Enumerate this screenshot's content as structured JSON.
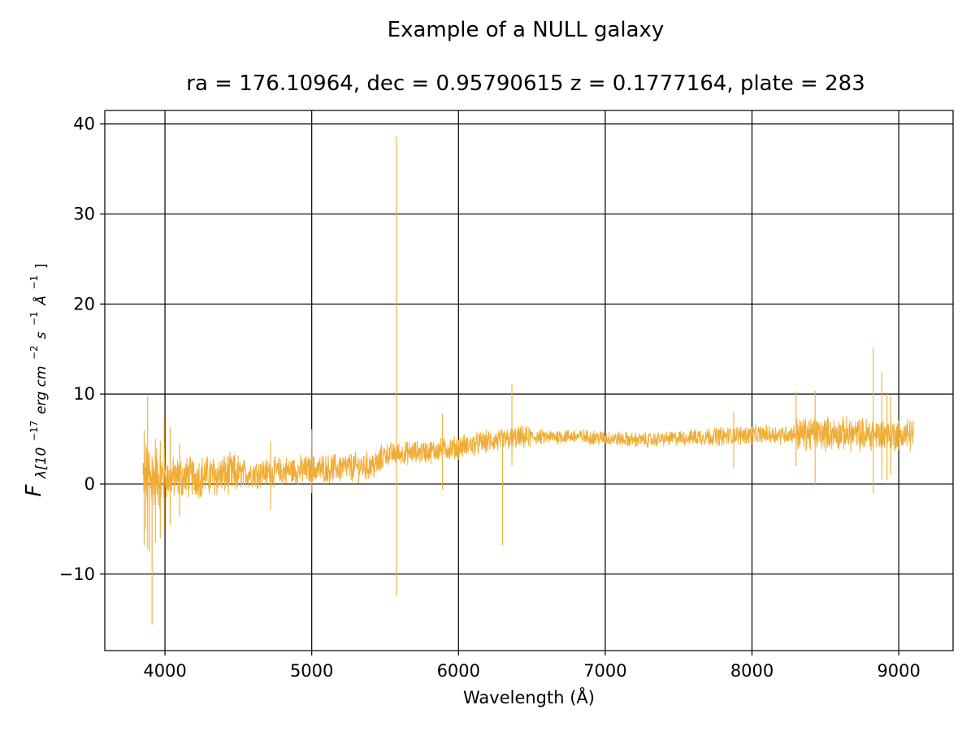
{
  "chart_data": {
    "type": "line",
    "title": "Example of a NULL galaxy",
    "subtitle": "ra = 176.10964, dec = 0.95790615 z = 0.1777164, plate = 283",
    "xlabel": "Wavelength (Å)",
    "ylabel": {
      "main": "F",
      "sub_prefix": "λ[10",
      "sup1": "−17",
      "mid1": "erg cm",
      "sup2": "−2",
      "mid2": "s",
      "sup3": "−1",
      "mid3": "Å",
      "sup4": "−1",
      "suffix": "]"
    },
    "xlim": [
      3590,
      9370
    ],
    "ylim": [
      -18.5,
      41.5
    ],
    "xticks": [
      4000,
      5000,
      6000,
      7000,
      8000,
      9000
    ],
    "xtick_labels": [
      "4000",
      "5000",
      "6000",
      "7000",
      "8000",
      "9000"
    ],
    "yticks": [
      -10,
      0,
      10,
      20,
      30,
      40
    ],
    "ytick_labels": [
      "−10",
      "0",
      "10",
      "20",
      "30",
      "40"
    ],
    "grid": true,
    "legend": "none",
    "line_color": "#f0ad35",
    "series": [
      {
        "x": [
          3850,
          3900,
          3950,
          4000,
          4100,
          4200,
          4300,
          4400,
          4500,
          4600,
          4700,
          4800,
          4900,
          5000,
          5100,
          5200,
          5300,
          5400,
          5450,
          5500,
          5600,
          5700,
          5800,
          5900,
          6000,
          6100,
          6200,
          6300,
          6400,
          6500,
          6600,
          6700,
          6800,
          6900,
          7000,
          7100,
          7200,
          7300,
          7400,
          7500,
          7600,
          7700,
          7800,
          7900,
          8000,
          8100,
          8200,
          8300,
          8400,
          8500,
          8600,
          8700,
          8800,
          8900,
          9000,
          9100
        ],
        "y": [
          0.5,
          0.5,
          0.8,
          0.6,
          0.7,
          0.8,
          0.9,
          1.0,
          1.1,
          1.2,
          1.3,
          1.4,
          1.5,
          1.6,
          1.7,
          1.8,
          1.9,
          2.0,
          2.2,
          3.3,
          3.4,
          3.5,
          3.6,
          3.9,
          4.1,
          4.4,
          4.7,
          4.9,
          5.1,
          5.2,
          5.2,
          5.3,
          5.3,
          5.2,
          5.1,
          5.0,
          4.9,
          4.9,
          5.0,
          5.1,
          5.2,
          5.3,
          5.3,
          5.4,
          5.5,
          5.5,
          5.5,
          5.6,
          5.6,
          5.6,
          5.6,
          5.5,
          5.5,
          5.5,
          5.5,
          5.5
        ]
      }
    ],
    "annotations_spikes": [
      {
        "x": 3858,
        "ymin": -6.8,
        "ymax": 6.0
      },
      {
        "x": 3870,
        "ymin": -5.0,
        "ymax": 4.5
      },
      {
        "x": 3882,
        "ymin": -7.2,
        "ymax": 9.8
      },
      {
        "x": 3895,
        "ymin": -7.5,
        "ymax": 3.5
      },
      {
        "x": 3912,
        "ymin": -15.6,
        "ymax": 3.0
      },
      {
        "x": 3935,
        "ymin": -6.5,
        "ymax": 5.0
      },
      {
        "x": 3968,
        "ymin": -6.0,
        "ymax": 4.8
      },
      {
        "x": 3995,
        "ymin": -5.0,
        "ymax": 7.5
      },
      {
        "x": 4035,
        "ymin": -4.5,
        "ymax": 6.3
      },
      {
        "x": 4100,
        "ymin": -3.6,
        "ymax": 4.5
      },
      {
        "x": 4720,
        "ymin": -2.9,
        "ymax": 4.8
      },
      {
        "x": 5000,
        "ymin": -1.0,
        "ymax": 6.1
      },
      {
        "x": 5577,
        "ymin": -12.4,
        "ymax": 38.6
      },
      {
        "x": 5890,
        "ymin": -0.6,
        "ymax": 7.8
      },
      {
        "x": 6300,
        "ymin": -6.8,
        "ymax": 5.2
      },
      {
        "x": 6364,
        "ymin": 2.0,
        "ymax": 11.1
      },
      {
        "x": 7875,
        "ymin": 1.8,
        "ymax": 8.0
      },
      {
        "x": 8300,
        "ymin": 2.0,
        "ymax": 10.3
      },
      {
        "x": 8430,
        "ymin": 0.0,
        "ymax": 10.4
      },
      {
        "x": 8827,
        "ymin": -1.0,
        "ymax": 15.1
      },
      {
        "x": 8885,
        "ymin": 0.5,
        "ymax": 12.4
      },
      {
        "x": 8920,
        "ymin": 0.4,
        "ymax": 10.0
      },
      {
        "x": 8945,
        "ymin": 1.0,
        "ymax": 9.8
      }
    ]
  }
}
